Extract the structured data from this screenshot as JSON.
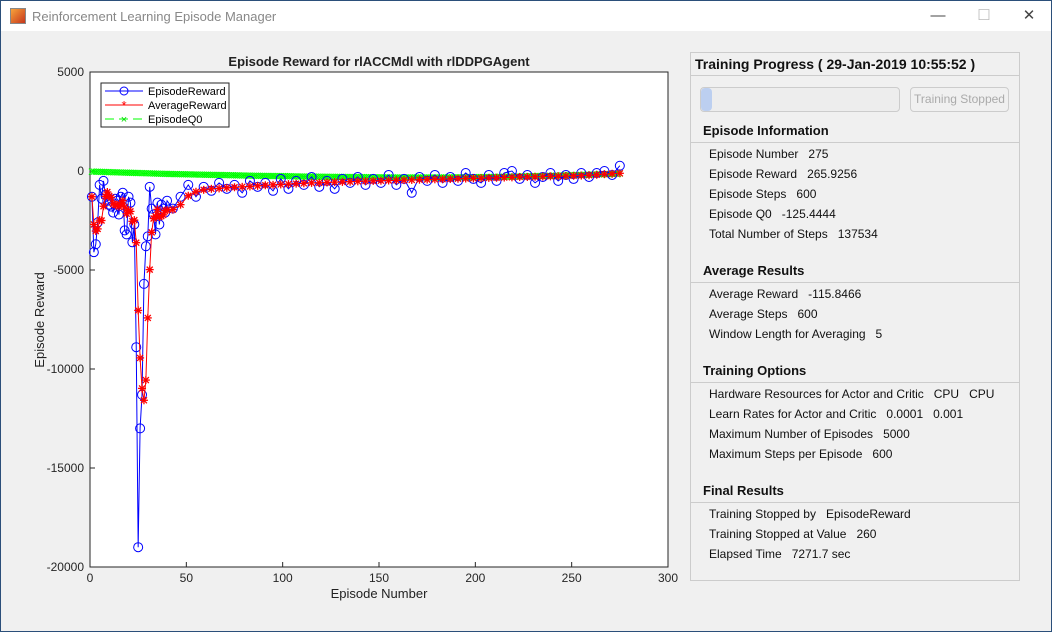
{
  "window": {
    "title": "Reinforcement Learning Episode Manager",
    "minimize": "—",
    "maximize": "☐",
    "close": "✕"
  },
  "panel": {
    "title": "Training Progress ( 29-Jan-2019 10:55:52 )",
    "progress_fraction": 0.055,
    "button": "Training Stopped",
    "sections": [
      {
        "header": "Episode Information",
        "rows": [
          [
            "Episode Number",
            "275"
          ],
          [
            "Episode Reward",
            "265.9256"
          ],
          [
            "Episode Steps",
            "600"
          ],
          [
            "Episode Q0",
            "-125.4444"
          ],
          [
            "Total Number of Steps",
            "137534"
          ]
        ]
      },
      {
        "header": "Average Results",
        "rows": [
          [
            "Average Reward",
            "-115.8466"
          ],
          [
            "Average Steps",
            "600"
          ],
          [
            "Window Length for Averaging",
            "5"
          ]
        ]
      },
      {
        "header": "Training Options",
        "rows": [
          [
            "Hardware Resources for Actor and Critic",
            "CPU",
            "CPU"
          ],
          [
            "Learn Rates for Actor and Critic",
            "0.0001",
            "0.001"
          ],
          [
            "Maximum Number of Episodes",
            "5000"
          ],
          [
            "Maximum Steps per Episode",
            "600"
          ]
        ]
      },
      {
        "header": "Final Results",
        "rows": [
          [
            "Training Stopped by",
            "EpisodeReward"
          ],
          [
            "Training Stopped at Value",
            "260"
          ],
          [
            "Elapsed Time",
            "7271.7 sec"
          ]
        ]
      }
    ]
  },
  "chart_data": {
    "type": "line",
    "title": "Episode Reward for rlACCMdl with rlDDPGAgent",
    "xlabel": "Episode Number",
    "ylabel": "Episode Reward",
    "xlim": [
      0,
      300
    ],
    "ylim": [
      -20000,
      5000
    ],
    "xticks": [
      0,
      50,
      100,
      150,
      200,
      250,
      300
    ],
    "yticks": [
      5000,
      0,
      -5000,
      -10000,
      -15000,
      -20000
    ],
    "ytick_labels": [
      "5000",
      "0",
      "-5000",
      "-10000",
      "-15000",
      "-20000"
    ],
    "grid": false,
    "legend_placement": "top-left",
    "series": [
      {
        "name": "EpisodeReward",
        "color": "#0000ff",
        "marker": "circle",
        "x": [
          1,
          2,
          3,
          4,
          5,
          6,
          7,
          8,
          9,
          10,
          11,
          12,
          13,
          14,
          15,
          16,
          17,
          18,
          19,
          20,
          21,
          22,
          23,
          24,
          25,
          26,
          27,
          28,
          29,
          30,
          31,
          32,
          33,
          34,
          35,
          36,
          37,
          38,
          39,
          40,
          43,
          47,
          51,
          55,
          59,
          63,
          67,
          71,
          75,
          79,
          83,
          87,
          91,
          95,
          99,
          103,
          107,
          111,
          115,
          119,
          123,
          127,
          131,
          135,
          139,
          143,
          147,
          151,
          155,
          159,
          163,
          167,
          171,
          175,
          179,
          183,
          187,
          191,
          195,
          199,
          203,
          207,
          211,
          215,
          219,
          223,
          227,
          231,
          235,
          239,
          243,
          247,
          251,
          255,
          259,
          263,
          267,
          271,
          275
        ],
        "y": [
          -1300,
          -4100,
          -3700,
          -2600,
          -700,
          -1400,
          -500,
          -1200,
          -1500,
          -1700,
          -1800,
          -2100,
          -1400,
          -1500,
          -2200,
          -1300,
          -1100,
          -3000,
          -3200,
          -1300,
          -1600,
          -3600,
          -2700,
          -8900,
          -19000,
          -13000,
          -11300,
          -5700,
          -3800,
          -3300,
          -800,
          -1900,
          -2200,
          -3200,
          -1600,
          -2700,
          -1700,
          -1900,
          -2100,
          -1500,
          -1900,
          -1300,
          -700,
          -1300,
          -800,
          -1000,
          -600,
          -900,
          -700,
          -1100,
          -500,
          -800,
          -600,
          -1000,
          -400,
          -900,
          -500,
          -700,
          -300,
          -800,
          -500,
          -900,
          -400,
          -600,
          -300,
          -700,
          -400,
          -600,
          -200,
          -700,
          -400,
          -1100,
          -300,
          -500,
          -200,
          -600,
          -300,
          -500,
          -100,
          -400,
          -600,
          -200,
          -500,
          -100,
          0,
          -400,
          -200,
          -600,
          -300,
          -100,
          -500,
          -200,
          -400,
          -100,
          -300,
          -100,
          0,
          -200,
          266
        ]
      },
      {
        "name": "AverageReward",
        "color": "#ff0000",
        "marker": "asterisk",
        "x": [
          1,
          2,
          3,
          4,
          5,
          6,
          7,
          8,
          9,
          10,
          11,
          12,
          13,
          14,
          15,
          16,
          17,
          18,
          19,
          20,
          21,
          22,
          23,
          24,
          25,
          26,
          27,
          28,
          29,
          30,
          31,
          32,
          33,
          34,
          35,
          36,
          37,
          38,
          39,
          40,
          43,
          47,
          51,
          55,
          59,
          63,
          67,
          71,
          75,
          79,
          83,
          87,
          91,
          95,
          99,
          103,
          107,
          111,
          115,
          119,
          123,
          127,
          131,
          135,
          139,
          143,
          147,
          151,
          155,
          159,
          163,
          167,
          171,
          175,
          179,
          183,
          187,
          191,
          195,
          199,
          203,
          207,
          211,
          215,
          219,
          223,
          227,
          231,
          235,
          239,
          243,
          247,
          251,
          255,
          259,
          263,
          267,
          271,
          275
        ],
        "y": [
          -1300,
          -2700,
          -3033,
          -2925,
          -2480,
          -2500,
          -1780,
          -1280,
          -1060,
          -1260,
          -1340,
          -1660,
          -1700,
          -1700,
          -1800,
          -1700,
          -1500,
          -1820,
          -2160,
          -1980,
          -2040,
          -2540,
          -2480,
          -3620,
          -7040,
          -9440,
          -10980,
          -11580,
          -10560,
          -7420,
          -4980,
          -3100,
          -2400,
          -2280,
          -1940,
          -2320,
          -2280,
          -2220,
          -2000,
          -1980,
          -1950,
          -1700,
          -1250,
          -1050,
          -950,
          -900,
          -880,
          -850,
          -820,
          -800,
          -780,
          -750,
          -720,
          -700,
          -680,
          -660,
          -640,
          -620,
          -600,
          -600,
          -580,
          -560,
          -550,
          -540,
          -520,
          -510,
          -500,
          -490,
          -480,
          -470,
          -460,
          -450,
          -440,
          -430,
          -420,
          -410,
          -400,
          -390,
          -380,
          -370,
          -360,
          -350,
          -340,
          -330,
          -320,
          -300,
          -300,
          -290,
          -280,
          -270,
          -260,
          -250,
          -240,
          -230,
          -210,
          -190,
          -160,
          -140,
          -116
        ]
      },
      {
        "name": "EpisodeQ0",
        "color": "#00ff00",
        "marker": "x",
        "line": "dashed",
        "x": [
          1,
          11,
          21,
          31,
          41,
          51,
          61,
          71,
          81,
          91,
          101,
          111,
          121,
          131,
          141,
          151,
          161,
          171,
          181,
          191,
          201,
          211,
          221,
          231,
          241,
          251,
          261,
          271,
          275
        ],
        "y": [
          -30,
          -60,
          -90,
          -120,
          -150,
          -170,
          -190,
          -210,
          -230,
          -250,
          -260,
          -280,
          -290,
          -300,
          -310,
          -320,
          -330,
          -330,
          -330,
          -320,
          -310,
          -300,
          -280,
          -260,
          -240,
          -210,
          -180,
          -150,
          -125
        ]
      }
    ]
  }
}
